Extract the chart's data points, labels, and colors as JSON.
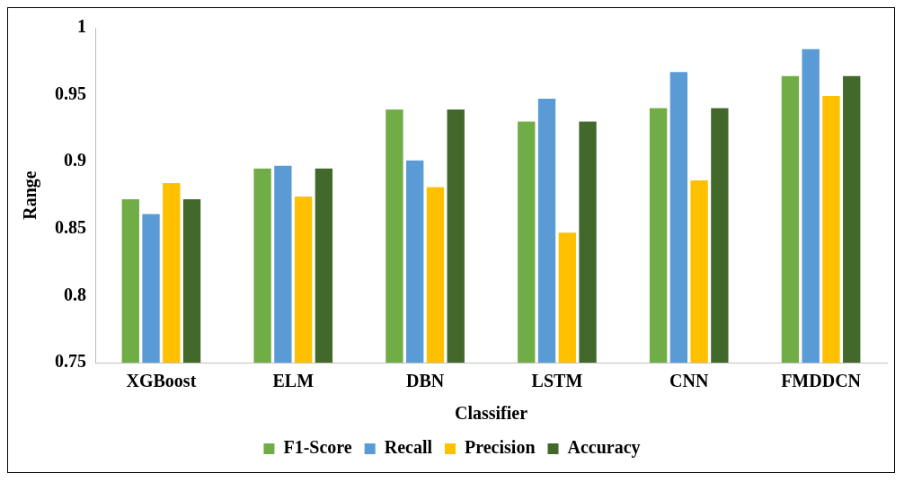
{
  "chart_data": {
    "type": "bar",
    "xlabel": "Classifier",
    "ylabel": "Range",
    "categories": [
      "XGBoost",
      "ELM",
      "DBN",
      "LSTM",
      "CNN",
      "FMDDCN"
    ],
    "series": [
      {
        "name": "F1-Score",
        "color": "#70ad47",
        "values": [
          0.872,
          0.895,
          0.939,
          0.93,
          0.94,
          0.964
        ]
      },
      {
        "name": "Recall",
        "color": "#5b9bd5",
        "values": [
          0.861,
          0.897,
          0.901,
          0.947,
          0.967,
          0.984
        ]
      },
      {
        "name": "Precision",
        "color": "#ffc000",
        "values": [
          0.884,
          0.874,
          0.881,
          0.847,
          0.886,
          0.949
        ]
      },
      {
        "name": "Accuracy",
        "color": "#43682b",
        "values": [
          0.872,
          0.895,
          0.939,
          0.93,
          0.94,
          0.964
        ]
      }
    ],
    "ylim": [
      0.75,
      1
    ],
    "yticks": [
      0.75,
      0.8,
      0.85,
      0.9,
      0.95,
      1
    ],
    "grid": false,
    "legend": "bottom"
  }
}
